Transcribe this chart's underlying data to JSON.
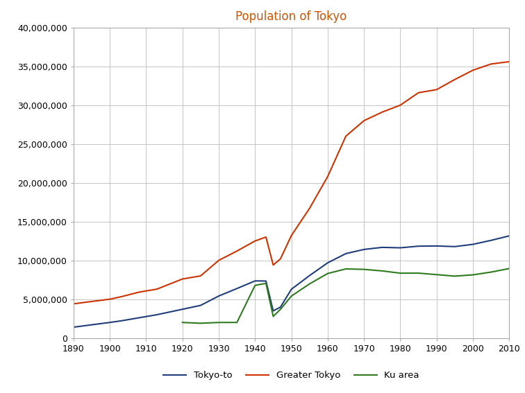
{
  "title": "Population of Tokyo",
  "title_color": "#cc5500",
  "background_color": "#ffffff",
  "grid_color": "#bbbbbb",
  "xlim": [
    1890,
    2010
  ],
  "ylim": [
    0,
    40000000
  ],
  "ytick_step": 5000000,
  "series": {
    "Tokyo-to": {
      "color": "#1f3d7a",
      "linewidth": 1.5,
      "years": [
        1890,
        1895,
        1900,
        1903,
        1908,
        1913,
        1920,
        1925,
        1930,
        1935,
        1940,
        1943,
        1945,
        1947,
        1950,
        1955,
        1960,
        1965,
        1970,
        1975,
        1980,
        1985,
        1990,
        1995,
        2000,
        2005,
        2010
      ],
      "values": [
        1390000,
        1700000,
        2000000,
        2200000,
        2600000,
        3000000,
        3700000,
        4200000,
        5408000,
        6370000,
        7355000,
        7340000,
        3490000,
        3980000,
        6278000,
        8037000,
        9684000,
        10870000,
        11408000,
        11674000,
        11618000,
        11829000,
        11856000,
        11773000,
        12064000,
        12577000,
        13159000
      ]
    },
    "Greater Tokyo": {
      "color": "#cc3300",
      "linewidth": 1.5,
      "years": [
        1890,
        1895,
        1900,
        1903,
        1908,
        1913,
        1920,
        1925,
        1930,
        1935,
        1940,
        1943,
        1945,
        1947,
        1950,
        1955,
        1960,
        1965,
        1970,
        1975,
        1980,
        1985,
        1990,
        1995,
        2000,
        2005,
        2010
      ],
      "values": [
        4400000,
        4700000,
        5000000,
        5300000,
        5900000,
        6300000,
        7600000,
        8000000,
        10000000,
        11200000,
        12500000,
        13000000,
        9400000,
        10200000,
        13200000,
        16700000,
        20800000,
        26000000,
        28000000,
        29100000,
        30000000,
        31600000,
        32000000,
        33300000,
        34500000,
        35300000,
        35600000
      ]
    },
    "Ku area": {
      "color": "#2d7a1f",
      "linewidth": 1.5,
      "years": [
        1920,
        1925,
        1930,
        1935,
        1940,
        1943,
        1945,
        1947,
        1950,
        1955,
        1960,
        1965,
        1970,
        1975,
        1980,
        1985,
        1990,
        1995,
        2000,
        2005,
        2010
      ],
      "values": [
        2000000,
        1900000,
        2000000,
        2000000,
        6780000,
        7040000,
        2780000,
        3700000,
        5400000,
        6970000,
        8310000,
        8900000,
        8840000,
        8640000,
        8350000,
        8354000,
        8163000,
        7967000,
        8134000,
        8490000,
        8946000
      ]
    }
  },
  "legend_labels": [
    "Tokyo-to",
    "Greater Tokyo",
    "Ku area"
  ],
  "legend_colors": [
    "#1f3d7a",
    "#cc3300",
    "#2d7a1f"
  ],
  "tick_fontsize": 9,
  "title_fontsize": 12
}
